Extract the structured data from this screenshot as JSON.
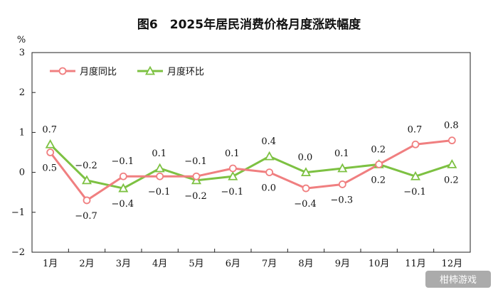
{
  "chart_data": {
    "type": "line",
    "title": "图6　2025年居民消费价格月度涨跌幅度",
    "ylabel": "%",
    "ylim": [
      -2,
      3
    ],
    "yticks": [
      "3",
      "2",
      "1",
      "0",
      "-1",
      "-2"
    ],
    "categories": [
      "1月",
      "2月",
      "3月",
      "4月",
      "5月",
      "6月",
      "7月",
      "8月",
      "9月",
      "10月",
      "11月",
      "12月"
    ],
    "series": [
      {
        "name": "月度同比",
        "color": "#f07f80",
        "marker": "circle",
        "values": [
          0.5,
          -0.7,
          -0.1,
          -0.1,
          -0.1,
          0.1,
          0.0,
          -0.4,
          -0.3,
          0.2,
          0.7,
          0.8
        ],
        "labels": [
          "0.5",
          "-0.7",
          "-0.1",
          "-0.1",
          "-0.1",
          "0.1",
          "0.0",
          "-0.4",
          "-0.3",
          "0.2",
          "0.7",
          "0.8"
        ]
      },
      {
        "name": "月度环比",
        "color": "#7dc142",
        "marker": "triangle",
        "values": [
          0.7,
          -0.2,
          -0.4,
          0.1,
          -0.2,
          -0.1,
          0.4,
          0.0,
          0.1,
          0.2,
          -0.1,
          0.2
        ],
        "labels": [
          "0.7",
          "-0.2",
          "-0.4",
          "0.1",
          "-0.2",
          "-0.1",
          "0.4",
          "0.0",
          "0.1",
          "0.2",
          "-0.1",
          "0.2"
        ]
      }
    ],
    "legend": "top-left",
    "grid": false
  },
  "watermark": "柑柿游戏"
}
